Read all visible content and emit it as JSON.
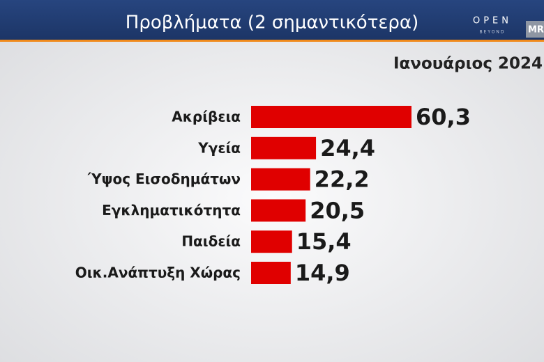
{
  "chart_data": {
    "type": "bar",
    "orientation": "horizontal",
    "title": "Προβλήματα (2 σημαντικότερα)",
    "subtitle": "Ιανουάριος 2024",
    "categories": [
      "Ακρίβεια",
      "Υγεία",
      "Ύψος Εισοδημάτων",
      "Εγκληματικότητα",
      "Παιδεία",
      "Οικ.Ανάπτυξη Χώρας"
    ],
    "values": [
      60.3,
      24.4,
      22.2,
      20.5,
      15.4,
      14.9
    ],
    "value_labels": [
      "60,3",
      "24,4",
      "22,2",
      "20,5",
      "15,4",
      "14,9"
    ],
    "color": "#e00000"
  },
  "channel_logo": {
    "name": "OPEN",
    "tagline": "BEYOND"
  },
  "pollster_logo": "MRB"
}
